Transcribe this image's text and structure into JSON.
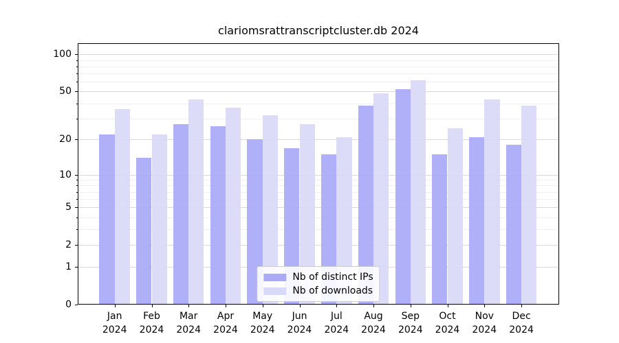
{
  "title": "clariomsrattranscriptcluster.db 2024",
  "chart_data": {
    "type": "bar",
    "title": "clariomsrattranscriptcluster.db 2024",
    "scale": "log1p",
    "categories": [
      "Jan",
      "Feb",
      "Mar",
      "Apr",
      "May",
      "Jun",
      "Jul",
      "Aug",
      "Sep",
      "Oct",
      "Nov",
      "Dec"
    ],
    "year_label": "2024",
    "series": [
      {
        "name": "Nb of distinct IPs",
        "color": "#aaaaf7",
        "values": [
          22,
          14,
          27,
          26,
          20,
          17,
          15,
          38,
          52,
          15,
          21,
          18
        ]
      },
      {
        "name": "Nb of downloads",
        "color": "#d9d9f9",
        "values": [
          36,
          22,
          43,
          37,
          32,
          27,
          21,
          48,
          62,
          25,
          43,
          38
        ]
      }
    ],
    "yticks": [
      0,
      1,
      2,
      5,
      10,
      20,
      50,
      100
    ],
    "minor_grid_values": [
      3,
      4,
      6,
      7,
      8,
      9,
      30,
      40,
      60,
      70,
      80,
      90
    ],
    "ylim": [
      0,
      123
    ],
    "xlabel": "",
    "ylabel": "",
    "grid": true,
    "legend_position": "lower center"
  },
  "colors": {
    "major_grid": "#d9d9d9",
    "minor_grid": "#efefef",
    "axis": "#000000",
    "legend_border": "#cccccc",
    "background": "#ffffff"
  }
}
